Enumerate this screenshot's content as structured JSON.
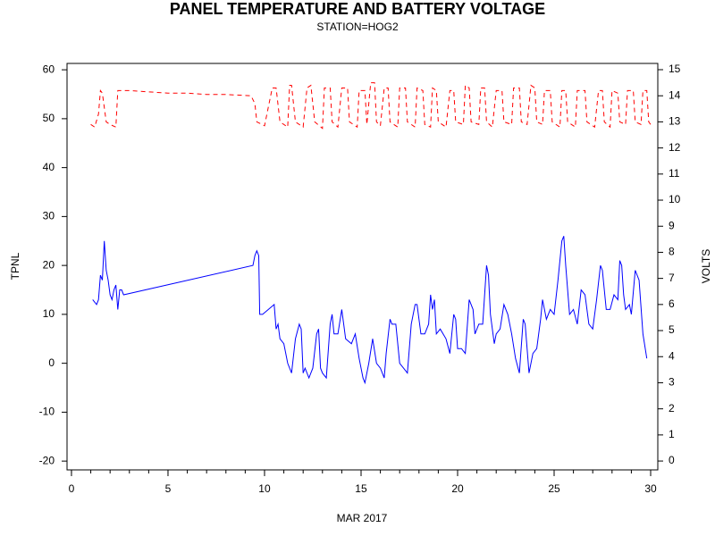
{
  "chart_data": {
    "type": "line",
    "title": "PANEL TEMPERATURE AND BATTERY VOLTAGE",
    "subtitle": "STATION=HOG2",
    "xlabel": "MAR 2017",
    "ylabel": "TPNL",
    "y2label": "VOLTS",
    "xlim": [
      -0.23,
      30.37
    ],
    "xticks": [
      0,
      5,
      10,
      15,
      20,
      25,
      30
    ],
    "xminorticks": [
      0,
      1,
      2,
      3,
      4,
      5,
      6,
      7,
      8,
      9,
      10,
      11,
      12,
      13,
      14,
      15,
      16,
      17,
      18,
      19,
      20,
      21,
      22,
      23,
      24,
      25,
      26,
      27,
      28,
      29,
      30
    ],
    "ylim": [
      -21.8,
      61.3
    ],
    "yticks": [
      -20,
      -10,
      0,
      10,
      20,
      30,
      40,
      50,
      60
    ],
    "y2lim": [
      -0.34,
      15.24
    ],
    "y2ticks": [
      0,
      1,
      2,
      3,
      4,
      5,
      6,
      7,
      8,
      9,
      10,
      11,
      12,
      13,
      14,
      15
    ],
    "series": [
      {
        "color": "#0000ff",
        "style": "solid",
        "x": [
          1.1,
          1.3,
          1.4,
          1.5,
          1.6,
          1.7,
          1.8,
          1.9,
          2.0,
          2.1,
          2.2,
          2.3,
          2.4,
          2.5,
          2.6,
          2.7,
          9.4,
          9.5,
          9.6,
          9.7,
          9.75,
          9.9,
          10.2,
          10.5,
          10.6,
          10.7,
          10.8,
          11.0,
          11.2,
          11.4,
          11.6,
          11.8,
          11.9,
          12.0,
          12.1,
          12.3,
          12.5,
          12.7,
          12.8,
          12.9,
          13.0,
          13.2,
          13.4,
          13.5,
          13.6,
          13.8,
          14.0,
          14.1,
          14.2,
          14.5,
          14.7,
          14.9,
          15.1,
          15.2,
          15.4,
          15.6,
          15.8,
          16.0,
          16.2,
          16.3,
          16.5,
          16.6,
          16.8,
          17.0,
          17.2,
          17.4,
          17.6,
          17.8,
          17.9,
          18.1,
          18.3,
          18.5,
          18.6,
          18.7,
          18.8,
          18.9,
          19.1,
          19.4,
          19.6,
          19.8,
          19.9,
          20.0,
          20.2,
          20.4,
          20.6,
          20.8,
          20.9,
          21.1,
          21.3,
          21.5,
          21.6,
          21.7,
          21.9,
          22.0,
          22.2,
          22.4,
          22.6,
          22.8,
          23.0,
          23.2,
          23.4,
          23.5,
          23.7,
          23.9,
          24.1,
          24.3,
          24.4,
          24.6,
          24.8,
          25.0,
          25.2,
          25.4,
          25.5,
          25.6,
          25.8,
          26.0,
          26.2,
          26.4,
          26.6,
          26.8,
          27.0,
          27.2,
          27.4,
          27.5,
          27.7,
          27.9,
          28.1,
          28.3,
          28.4,
          28.5,
          28.6,
          28.7,
          28.9,
          29.0,
          29.2,
          29.4,
          29.6,
          29.8
        ],
        "values": [
          13,
          12,
          13,
          18,
          17,
          25,
          19,
          17,
          14,
          13,
          15,
          16,
          11,
          15,
          15,
          14,
          20,
          22,
          23,
          22,
          10,
          10,
          11,
          12,
          7,
          8,
          5,
          4,
          0,
          -2,
          5,
          8,
          7,
          -2,
          -1,
          -3,
          -1,
          6,
          7,
          -1,
          -2,
          -3,
          8,
          10,
          6,
          6,
          11,
          8,
          5,
          4,
          6,
          1,
          -3,
          -4,
          0,
          5,
          0,
          -1,
          -3,
          2,
          9,
          8,
          8,
          0,
          -1,
          -2,
          8,
          12,
          12,
          6,
          6,
          8,
          14,
          11,
          13,
          6,
          7,
          5,
          2,
          10,
          9,
          3,
          3,
          2,
          13,
          11,
          6,
          8,
          8,
          20,
          18,
          10,
          4,
          6,
          7,
          12,
          10,
          6,
          1,
          -2,
          9,
          8,
          -2,
          2,
          3,
          9,
          13,
          9,
          11,
          10,
          17,
          25,
          26,
          20,
          10,
          11,
          8,
          15,
          14,
          8,
          7,
          13,
          20,
          19,
          11,
          11,
          14,
          13,
          21,
          20,
          14,
          11,
          12,
          10,
          19,
          17,
          6,
          1
        ]
      },
      {
        "color": "#ff0000",
        "style": "dashed",
        "axis": "y2",
        "x": [
          1.0,
          1.2,
          1.4,
          1.5,
          1.6,
          1.8,
          2.0,
          2.3,
          2.4,
          3.0,
          4.0,
          5.0,
          6.0,
          7.0,
          8.0,
          9.3,
          9.5,
          9.6,
          10.0,
          10.4,
          10.6,
          10.8,
          11.2,
          11.3,
          11.4,
          11.6,
          12.0,
          12.2,
          12.4,
          12.6,
          13.0,
          13.1,
          13.4,
          13.5,
          13.8,
          14.0,
          14.3,
          14.4,
          14.8,
          14.9,
          15.2,
          15.3,
          15.5,
          15.7,
          15.8,
          16.0,
          16.2,
          16.4,
          16.5,
          16.9,
          17.0,
          17.3,
          17.4,
          17.8,
          17.9,
          18.2,
          18.3,
          18.6,
          18.7,
          18.9,
          19.0,
          19.4,
          19.6,
          19.8,
          19.9,
          20.3,
          20.4,
          20.6,
          20.7,
          21.1,
          21.2,
          21.4,
          21.5,
          21.8,
          22.0,
          22.3,
          22.4,
          22.8,
          22.9,
          23.2,
          23.3,
          23.6,
          23.8,
          24.0,
          24.1,
          24.4,
          24.5,
          24.8,
          24.9,
          25.3,
          25.4,
          25.6,
          25.7,
          26.1,
          26.2,
          26.6,
          26.7,
          27.1,
          27.3,
          27.5,
          27.6,
          27.9,
          28.0,
          28.3,
          28.4,
          28.7,
          28.8,
          29.1,
          29.2,
          29.5,
          29.6,
          29.8,
          29.9,
          30.0
        ],
        "values": [
          12.9,
          12.8,
          13.3,
          14.2,
          14.1,
          13.0,
          12.9,
          12.8,
          14.2,
          14.2,
          14.15,
          14.1,
          14.1,
          14.05,
          14.05,
          14.0,
          13.7,
          13.0,
          12.85,
          14.3,
          14.3,
          13.0,
          12.8,
          14.4,
          14.4,
          13.0,
          12.8,
          14.3,
          14.4,
          13.0,
          12.75,
          14.3,
          14.3,
          13.0,
          12.8,
          14.3,
          14.3,
          13.0,
          12.8,
          14.2,
          14.2,
          12.9,
          14.5,
          14.5,
          13.0,
          12.85,
          14.3,
          14.3,
          13.0,
          12.8,
          14.3,
          14.3,
          13.0,
          12.8,
          14.3,
          14.2,
          12.9,
          12.8,
          14.3,
          14.2,
          13.0,
          12.8,
          14.2,
          14.2,
          13.0,
          12.9,
          14.4,
          14.3,
          13.0,
          12.9,
          14.3,
          14.3,
          13.0,
          12.8,
          14.2,
          14.2,
          13.0,
          12.9,
          14.3,
          14.3,
          13.0,
          12.9,
          14.4,
          14.3,
          13.0,
          12.9,
          14.2,
          14.2,
          13.0,
          12.8,
          14.2,
          14.2,
          13.0,
          12.8,
          14.2,
          14.2,
          13.0,
          12.8,
          14.2,
          14.2,
          13.0,
          12.8,
          14.2,
          14.1,
          13.0,
          12.9,
          14.2,
          14.2,
          13.0,
          12.9,
          14.2,
          14.2,
          13.0,
          12.9
        ]
      }
    ]
  }
}
